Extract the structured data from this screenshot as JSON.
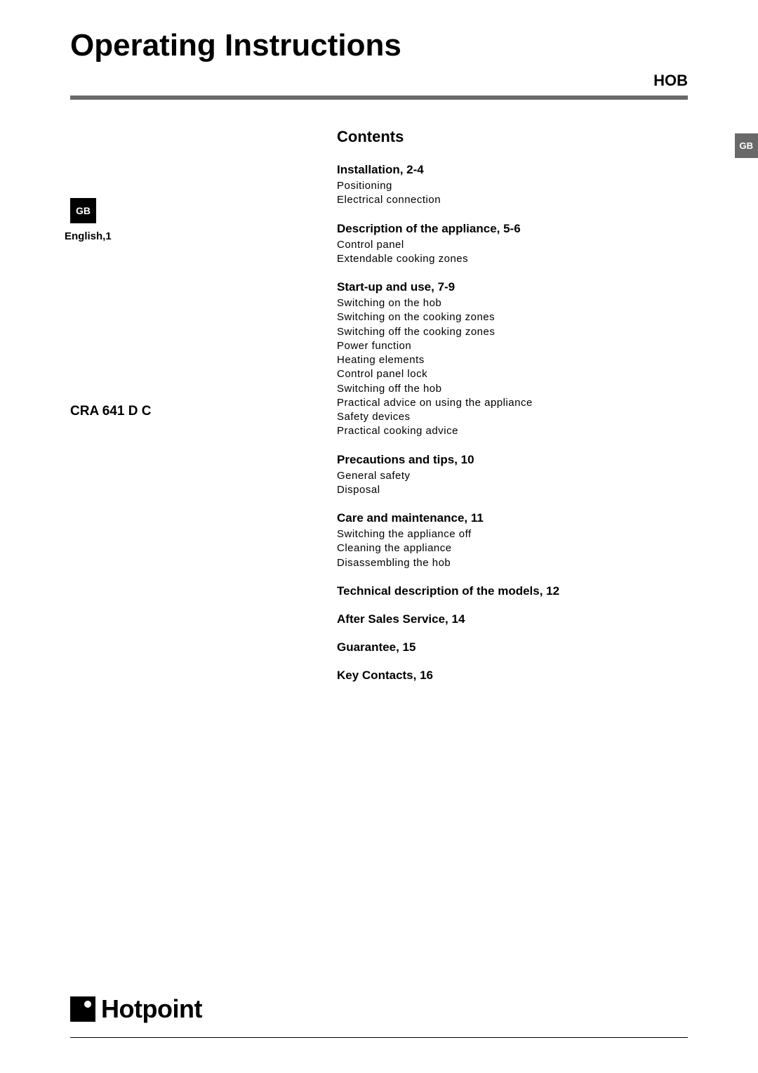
{
  "main_title": "Operating Instructions",
  "subtitle": "HOB",
  "colors": {
    "background": "#ffffff",
    "text": "#000000",
    "divider": "#696969",
    "badge_bg": "#000000",
    "badge_text": "#ffffff",
    "side_tab_bg": "#696969",
    "side_tab_text": "#ffffff"
  },
  "left": {
    "gb_badge": "GB",
    "language": "English,1",
    "model": "CRA 641 D C"
  },
  "side_tab": "GB",
  "contents": {
    "heading": "Contents",
    "sections": [
      {
        "title": "Installation, 2-4",
        "items": [
          "Positioning",
          "Electrical connection"
        ]
      },
      {
        "title": "Description of the appliance, 5-6",
        "items": [
          "Control panel",
          "Extendable cooking zones"
        ]
      },
      {
        "title": "Start-up and use, 7-9",
        "items": [
          "Switching on the hob",
          "Switching on the cooking zones",
          "Switching off the cooking zones",
          "Power function",
          "Heating elements",
          "Control panel lock",
          "Switching off the hob",
          "Practical advice on using the appliance",
          "Safety devices",
          "Practical cooking advice"
        ]
      },
      {
        "title": "Precautions and tips, 10",
        "items": [
          "General safety",
          "Disposal"
        ]
      },
      {
        "title": "Care and maintenance, 11",
        "items": [
          "Switching the appliance off",
          "Cleaning the appliance",
          "Disassembling the hob"
        ]
      },
      {
        "title": "Technical description of the models, 12",
        "items": []
      },
      {
        "title": "After Sales Service, 14",
        "items": []
      },
      {
        "title": "Guarantee, 15",
        "items": []
      },
      {
        "title": "Key Contacts, 16",
        "items": []
      }
    ]
  },
  "brand": {
    "name": "Hotpoint"
  }
}
